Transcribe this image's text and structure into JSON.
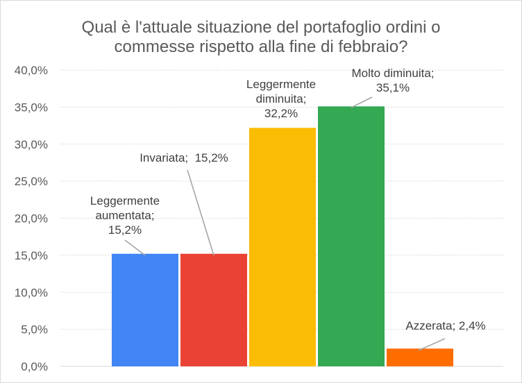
{
  "chart_data": {
    "type": "bar",
    "title_lines": [
      "Qual è l'attuale situazione del portafoglio ordini o",
      "commesse rispetto alla fine di febbraio?"
    ],
    "categories": [
      "Leggermente aumentata",
      "Invariata",
      "Leggermente diminuita",
      "Molto diminuita",
      "Azzerata"
    ],
    "values": [
      15.2,
      15.2,
      32.2,
      35.1,
      2.4
    ],
    "colors": [
      "#4285f4",
      "#ea4335",
      "#fbbc04",
      "#34a853",
      "#ff6d01"
    ],
    "data_labels": [
      [
        "Leggermente",
        "aumentata;",
        "15,2%"
      ],
      [
        "Invariata;  15,2%"
      ],
      [
        "Leggermente",
        "diminuita;",
        "32,2%"
      ],
      [
        "Molto diminuita;",
        "35,1%"
      ],
      [
        "Azzerata; 2,4%"
      ]
    ],
    "y_ticks": [
      "0,0%",
      "5,0%",
      "10,0%",
      "15,0%",
      "20,0%",
      "25,0%",
      "30,0%",
      "35,0%",
      "40,0%"
    ],
    "ylim": [
      0,
      40
    ],
    "y_step": 5,
    "grid": true,
    "legend": "none"
  }
}
